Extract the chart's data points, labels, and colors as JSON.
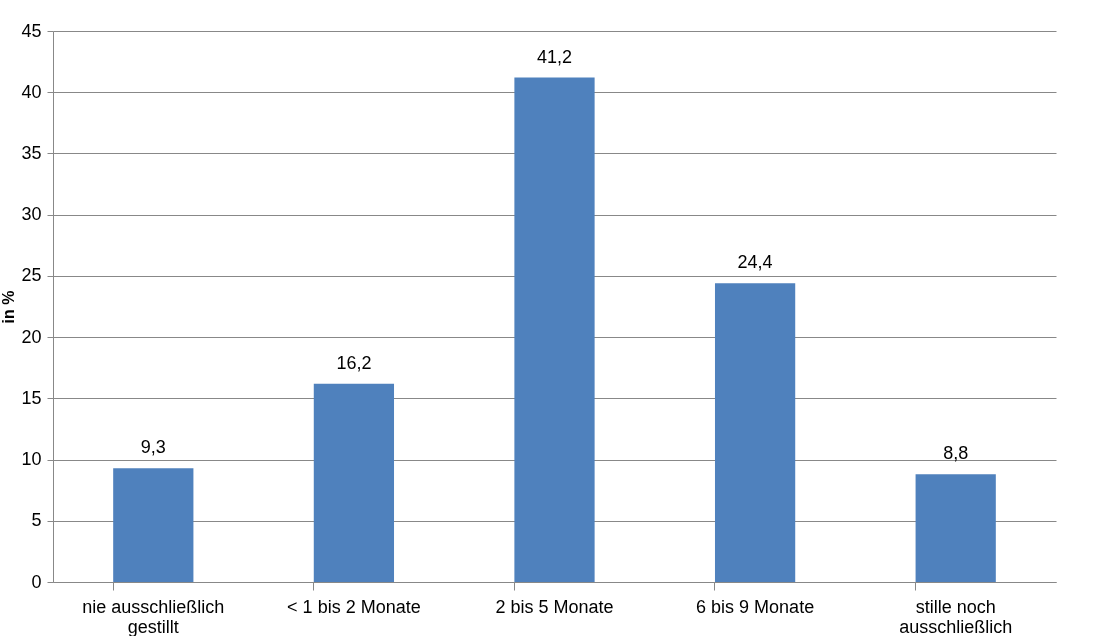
{
  "chart_data": {
    "type": "bar",
    "ylabel": "in %",
    "categories": [
      "nie ausschließlich gestillt",
      "< 1 bis 2 Monate",
      "2 bis 5 Monate",
      "6 bis 9 Monate",
      "stille noch ausschließlich"
    ],
    "values": [
      9.3,
      16.2,
      41.2,
      24.4,
      8.8
    ],
    "value_labels": [
      "9,3",
      "16,2",
      "41,2",
      "24,4",
      "8,8"
    ],
    "color": "#4f81bd",
    "ylim": [
      0,
      45
    ],
    "yticks": [
      0,
      5,
      10,
      15,
      20,
      25,
      30,
      35,
      40,
      45
    ],
    "grid": "y"
  }
}
